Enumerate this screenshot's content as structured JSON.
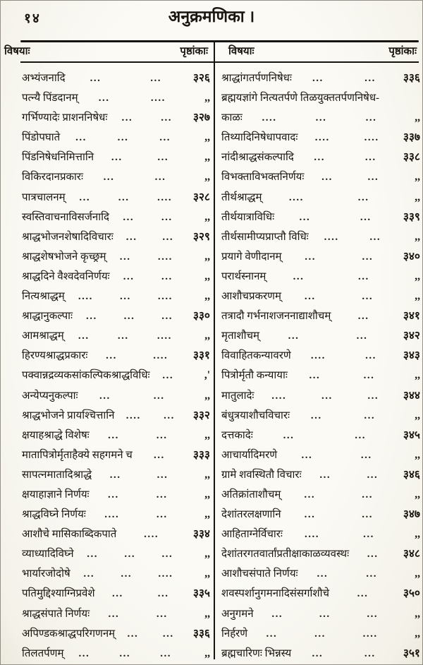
{
  "page": {
    "number": "१४",
    "title": "अनुक्रमणिका ।"
  },
  "table": {
    "left": {
      "subject_header": "विषयाः",
      "page_header": "पृष्ठांकाः",
      "rows": [
        {
          "t": "अभ्यंजनादि",
          "d": [
            "...",
            "..."
          ],
          "p": "३२६"
        },
        {
          "t": "पत्न्यै पिंडदानम्",
          "d": [
            "...",
            "...."
          ],
          "p": ",,"
        },
        {
          "t": "गर्भिण्यादेः प्राशननिषेधः",
          "d": [
            "...",
            "..."
          ],
          "p": "३२७"
        },
        {
          "t": "पिंडोपघाते",
          "d": [
            "...",
            "...",
            "..."
          ],
          "p": ",,"
        },
        {
          "t": "पिंडनिषेधनिमित्तानि",
          "d": [
            "...",
            "..."
          ],
          "p": ",,"
        },
        {
          "t": "विकिरदानप्रकारः",
          "d": [
            "...",
            "..."
          ],
          "p": ",,"
        },
        {
          "t": "पात्रचालनम्",
          "d": [
            "...",
            "...",
            "...."
          ],
          "p": "३२८"
        },
        {
          "t": "स्वस्तिवाचनाविसर्जनादि",
          "d": [
            "...",
            "..."
          ],
          "p": ",,"
        },
        {
          "t": "श्राद्धभोजनशेषादिविचारः",
          "d": [
            "...",
            "..."
          ],
          "p": "३२९"
        },
        {
          "t": "श्राद्धशेषभोजने कृच्छ्रम्",
          "d": [
            "...",
            "...."
          ],
          "p": ",,"
        },
        {
          "t": "श्राद्धदिने वैश्वदेवनिर्णयः",
          "d": [
            "...",
            "..."
          ],
          "p": ",,"
        },
        {
          "t": "नित्यश्राद्धम्",
          "d": [
            "....",
            "...",
            "...."
          ],
          "p": ",,"
        },
        {
          "t": "श्राद्धानुकल्पाः",
          "d": [
            "...",
            "...",
            "..."
          ],
          "p": "३३०"
        },
        {
          "t": "आमश्राद्धम्",
          "d": [
            "...",
            "...",
            "...."
          ],
          "p": ",,"
        },
        {
          "t": "हिरण्यश्राद्धप्रकारः",
          "d": [
            "...",
            "...."
          ],
          "p": "३३१"
        },
        {
          "t": "पक्वान्नद्रव्यकसांकल्पिकश्राद्धविधिः",
          "d": [
            "..."
          ],
          "p": ",'"
        },
        {
          "t": "अन्येप्यनुकल्पाः",
          "d": [
            "...",
            "..."
          ],
          "p": ",,"
        },
        {
          "t": "श्राद्धभोजने प्रायश्चित्तानि",
          "d": [
            "....",
            "..."
          ],
          "p": "३३२"
        },
        {
          "t": "क्षयाहश्राद्धे विशेषः",
          "d": [
            "...",
            "..."
          ],
          "p": ",,"
        },
        {
          "t": "मातापित्रोर्मृताहैक्ये सहगमने च",
          "d": [
            "..."
          ],
          "p": "३३३"
        },
        {
          "t": "सापत्नमातादिश्राद्धे",
          "d": [
            "...",
            "..."
          ],
          "p": ",,"
        },
        {
          "t": "क्षयाहाज्ञाने निर्णयः",
          "d": [
            "...",
            "..."
          ],
          "p": ",,"
        },
        {
          "t": "श्राद्धविघ्ने निर्णयः",
          "d": [
            "....",
            "..."
          ],
          "p": ",,"
        },
        {
          "t": "आशौचे मासिकाब्दिकपाते",
          "d": [
            "...."
          ],
          "p": "३३४"
        },
        {
          "t": "व्याध्यादिविघ्ने",
          "d": [
            "...",
            "...",
            "..."
          ],
          "p": ",,"
        },
        {
          "t": "भार्यारजोदोषे",
          "d": [
            "...",
            "...",
            "...."
          ],
          "p": ",,"
        },
        {
          "t": "पतिमुद्दिश्याग्निप्रवेशे",
          "d": [
            "...",
            "..."
          ],
          "p": "३३५"
        },
        {
          "t": "श्राद्धसंपाते निर्णयः",
          "d": [
            "...",
            "..."
          ],
          "p": ",,"
        },
        {
          "t": "अपिण्डकश्राद्धपरिगणनम्",
          "d": [
            "...",
            "..."
          ],
          "p": "३३६"
        },
        {
          "t": "तिलतर्पणम्",
          "d": [
            "...",
            "...",
            "..."
          ],
          "p": ",,"
        }
      ]
    },
    "right": {
      "subject_header": "विषयाः",
      "page_header": "पृष्ठांकाः",
      "rows": [
        {
          "t": "श्राद्धांगतर्पणनिषेधः",
          "d": [
            "...",
            "..."
          ],
          "p": "३३६"
        },
        {
          "t": "ब्रह्मयज्ञांगे नित्यतर्पणे तिळयुक्ततर्पणनिषेध-",
          "d": [],
          "p": ""
        },
        {
          "t": "काळः",
          "d": [
            "....",
            "...",
            "..."
          ],
          "p": ",,"
        },
        {
          "t": "तिथ्यादिनिषेधापवादः",
          "d": [
            "....",
            "...."
          ],
          "p": "३३७"
        },
        {
          "t": "नांदीश्राद्धसंकल्पादि",
          "d": [
            "...",
            "..."
          ],
          "p": "३३८"
        },
        {
          "t": "विभक्ताविभक्तनिर्णयः",
          "d": [
            "...",
            "..."
          ],
          "p": ",,"
        },
        {
          "t": "तीर्थश्राद्धम्",
          "d": [
            "....",
            "..."
          ],
          "p": ",,"
        },
        {
          "t": "तीर्थयात्राविधिः",
          "d": [
            "...",
            "..."
          ],
          "p": "३३९"
        },
        {
          "t": "तीर्थसामीप्यप्राप्तौ विधिः",
          "d": [
            "....",
            "..."
          ],
          "p": ",,"
        },
        {
          "t": "प्रयागे वेणीदानम्",
          "d": [
            "...",
            "..."
          ],
          "p": "३४०"
        },
        {
          "t": "परार्थस्नानम्",
          "d": [
            "...",
            "..."
          ],
          "p": ",,"
        },
        {
          "t": "आशौचप्रकरणम्",
          "d": [
            "...",
            "..."
          ],
          "p": ",,"
        },
        {
          "t": "तत्रादौ गर्भनाशजननाद्याशौचम्",
          "d": [
            "..."
          ],
          "p": "३४१"
        },
        {
          "t": "मृताशौचम्",
          "d": [
            "...",
            "..."
          ],
          "p": "३४२"
        },
        {
          "t": "विवाहितकन्यावरणे",
          "d": [
            "....",
            "..."
          ],
          "p": "३४३"
        },
        {
          "t": "पित्रोर्मृतौ कन्यायाः",
          "d": [
            "...",
            "..."
          ],
          "p": ",,"
        },
        {
          "t": "मातुलादेः",
          "d": [
            "....",
            "...",
            "..."
          ],
          "p": "३४४"
        },
        {
          "t": "बंधुत्रयाशौचविचारः",
          "d": [
            "...",
            "..."
          ],
          "p": ",,"
        },
        {
          "t": "दत्तकादेः",
          "d": [
            "...",
            "..."
          ],
          "p": "३४५"
        },
        {
          "t": "आचार्यादिमरणे",
          "d": [
            "...",
            "..."
          ],
          "p": ",,"
        },
        {
          "t": "ग्रामे शवस्थितौ विचारः",
          "d": [
            "...",
            "..."
          ],
          "p": "३४६"
        },
        {
          "t": "अतिक्रांताशौचम्",
          "d": [
            "...",
            "..."
          ],
          "p": ",,"
        },
        {
          "t": "देशांतरलक्षणानि",
          "d": [
            "...",
            "..."
          ],
          "p": "३४७"
        },
        {
          "t": "आहिताग्नेर्विचारः",
          "d": [
            "....",
            "..."
          ],
          "p": ",,"
        },
        {
          "t": "देशांतरगतवार्तांप्रतीक्षाकाळव्यवस्थः",
          "d": [
            "..."
          ],
          "p": "३४८"
        },
        {
          "t": "आशौचसंपाते निर्णयः",
          "d": [
            "...",
            "..."
          ],
          "p": ",,"
        },
        {
          "t": "शवस्पर्शानुगमनादिसंसर्गाशौचे",
          "d": [
            "..."
          ],
          "p": "३५०"
        },
        {
          "t": "अनुगमने",
          "d": [
            "...",
            "...",
            "..."
          ],
          "p": ",,"
        },
        {
          "t": "निर्हरणे",
          "d": [
            "...",
            "...",
            "...."
          ],
          "p": ",,"
        },
        {
          "t": "ब्रह्मचारिणः भिन्नस्य",
          "d": [
            "...",
            "..."
          ],
          "p": "३५१"
        }
      ]
    }
  }
}
